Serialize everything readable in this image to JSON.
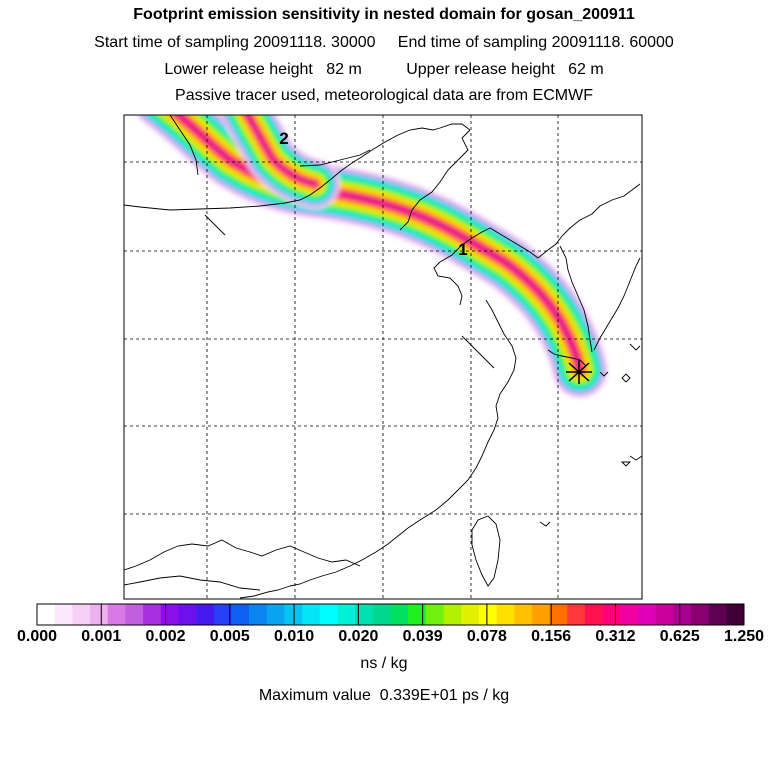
{
  "title": "Footprint emission sensitivity in nested domain for gosan_200911",
  "sampling_line": "Start time of sampling 20091118. 30000     End time of sampling 20091118. 60000",
  "release_line": "Lower release height   82 m          Upper release height   62 m",
  "tracer_line": "Passive tracer used, meteorological data are from ECMWF",
  "map": {
    "labels": [
      {
        "text": "2",
        "name": "trajectory-label-2"
      },
      {
        "text": "1",
        "name": "trajectory-label-1"
      }
    ],
    "receptor_symbol": "receptor-marker-icon",
    "gridlines": "dashed"
  },
  "colorbar": {
    "ticks": [
      "0.000",
      "0.001",
      "0.002",
      "0.005",
      "0.010",
      "0.020",
      "0.039",
      "0.078",
      "0.156",
      "0.312",
      "0.625",
      "1.250"
    ],
    "colors": [
      "#ffffff",
      "#fce8fc",
      "#f7d0f7",
      "#efb0f0",
      "#d87ae6",
      "#c060e0",
      "#a830e0",
      "#8a10e8",
      "#6c10ec",
      "#4818f0",
      "#2840f4",
      "#1060f4",
      "#0a84f0",
      "#08a4f0",
      "#06c4f4",
      "#05e4f8",
      "#00ffff",
      "#00f0d8",
      "#00e0b0",
      "#00d890",
      "#00e060",
      "#20f020",
      "#70f010",
      "#b0f000",
      "#e0f000",
      "#ffff00",
      "#ffe000",
      "#ffc000",
      "#ffa000",
      "#ff7000",
      "#ff3838",
      "#ff1050",
      "#ff0078",
      "#f000a0",
      "#e000b8",
      "#c8009c",
      "#a80090",
      "#880070",
      "#600050",
      "#400038"
    ],
    "units": "ns / kg"
  },
  "max_value_line": "Maximum value  0.339E+01 ps / kg"
}
